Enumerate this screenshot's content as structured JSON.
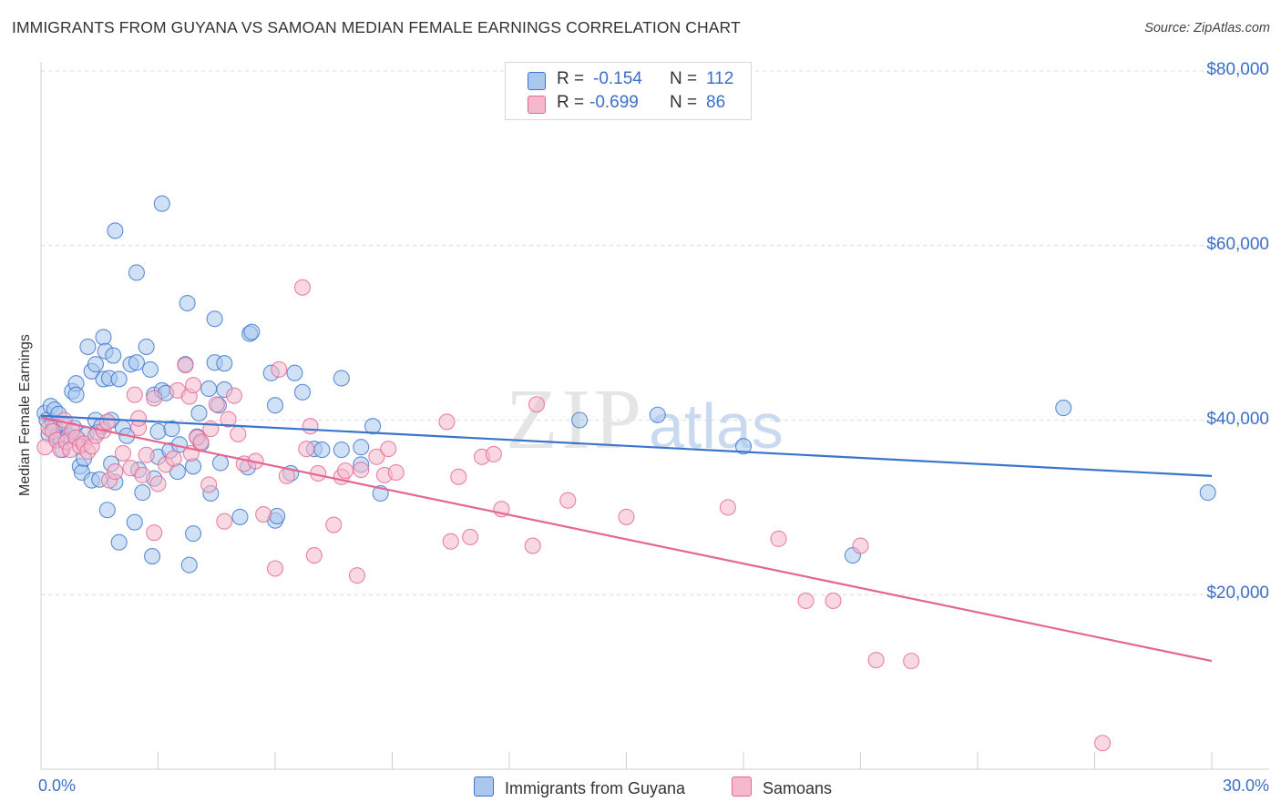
{
  "title": "IMMIGRANTS FROM GUYANA VS SAMOAN MEDIAN FEMALE EARNINGS CORRELATION CHART",
  "source": "Source: ZipAtlas.com",
  "watermark": {
    "zip": "ZIP",
    "atlas": "atlas"
  },
  "legend": {
    "rows": [
      {
        "r_label": "R =",
        "r_value": "-0.154",
        "n_label": "N =",
        "n_value": "112"
      },
      {
        "r_label": "R =",
        "r_value": "-0.699",
        "n_label": "N =",
        "n_value": "86"
      }
    ]
  },
  "colors": {
    "blue": "#3a74cc",
    "blue_fill": "#aac8ee",
    "pink": "#e4678f",
    "pink_fill": "#f6b8cc",
    "tick_text": "#3a6fc9",
    "grid": "#dcdcdc"
  },
  "chart_data": {
    "type": "scatter",
    "title": "IMMIGRANTS FROM GUYANA VS SAMOAN MEDIAN FEMALE EARNINGS CORRELATION CHART",
    "xlabel": "",
    "ylabel": "Median Female Earnings",
    "xlim": [
      0,
      30
    ],
    "ylim": [
      0,
      80000
    ],
    "x_tick_labels": [
      "0.0%",
      "30.0%"
    ],
    "y_ticks": [
      {
        "value": 20000,
        "label": "$20,000"
      },
      {
        "value": 40000,
        "label": "$40,000"
      },
      {
        "value": 60000,
        "label": "$60,000"
      },
      {
        "value": 80000,
        "label": "$80,000"
      }
    ],
    "series": [
      {
        "name": "Immigrants from Guyana",
        "color": "blue",
        "r": -0.154,
        "n": 112,
        "trend": {
          "x": [
            0,
            30
          ],
          "y": [
            40500,
            33600
          ]
        },
        "points": [
          [
            0.1,
            40800
          ],
          [
            0.15,
            40000
          ],
          [
            0.2,
            38400
          ],
          [
            0.25,
            41600
          ],
          [
            0.3,
            39800
          ],
          [
            0.35,
            41200
          ],
          [
            0.35,
            39200
          ],
          [
            0.4,
            38100
          ],
          [
            0.45,
            40700
          ],
          [
            0.5,
            37900
          ],
          [
            0.55,
            36600
          ],
          [
            0.6,
            39400
          ],
          [
            0.7,
            38200
          ],
          [
            0.8,
            43300
          ],
          [
            0.85,
            39100
          ],
          [
            0.9,
            44200
          ],
          [
            0.9,
            42900
          ],
          [
            0.95,
            37800
          ],
          [
            1.0,
            34700
          ],
          [
            1.05,
            34000
          ],
          [
            1.1,
            35600
          ],
          [
            1.15,
            38300
          ],
          [
            1.2,
            48400
          ],
          [
            1.3,
            45600
          ],
          [
            1.3,
            33100
          ],
          [
            1.4,
            46400
          ],
          [
            1.4,
            40000
          ],
          [
            1.45,
            38600
          ],
          [
            1.5,
            33200
          ],
          [
            1.55,
            39300
          ],
          [
            1.6,
            49500
          ],
          [
            1.6,
            44700
          ],
          [
            1.65,
            47900
          ],
          [
            1.7,
            29700
          ],
          [
            1.75,
            44800
          ],
          [
            1.8,
            40000
          ],
          [
            1.8,
            35000
          ],
          [
            1.85,
            47400
          ],
          [
            1.9,
            61700
          ],
          [
            1.9,
            32900
          ],
          [
            2.0,
            44700
          ],
          [
            2.0,
            26000
          ],
          [
            2.1,
            39100
          ],
          [
            2.2,
            38200
          ],
          [
            2.3,
            46400
          ],
          [
            2.4,
            28300
          ],
          [
            2.45,
            56900
          ],
          [
            2.45,
            46600
          ],
          [
            2.5,
            34300
          ],
          [
            2.6,
            31700
          ],
          [
            2.7,
            48400
          ],
          [
            2.8,
            45800
          ],
          [
            2.85,
            24400
          ],
          [
            2.9,
            42900
          ],
          [
            2.9,
            33300
          ],
          [
            3.0,
            35800
          ],
          [
            3.0,
            38700
          ],
          [
            3.1,
            64800
          ],
          [
            3.1,
            43400
          ],
          [
            3.2,
            43100
          ],
          [
            3.3,
            36500
          ],
          [
            3.35,
            39000
          ],
          [
            3.5,
            34100
          ],
          [
            3.55,
            37200
          ],
          [
            3.7,
            46400
          ],
          [
            3.75,
            53400
          ],
          [
            3.8,
            23400
          ],
          [
            3.9,
            27000
          ],
          [
            3.9,
            34700
          ],
          [
            4.0,
            38100
          ],
          [
            4.05,
            40800
          ],
          [
            4.1,
            37300
          ],
          [
            4.3,
            43600
          ],
          [
            4.35,
            31600
          ],
          [
            4.45,
            51600
          ],
          [
            4.45,
            46600
          ],
          [
            4.55,
            41700
          ],
          [
            4.6,
            35100
          ],
          [
            4.7,
            43500
          ],
          [
            4.7,
            46500
          ],
          [
            5.1,
            28900
          ],
          [
            5.3,
            34600
          ],
          [
            5.35,
            49900
          ],
          [
            5.4,
            50100
          ],
          [
            5.9,
            45400
          ],
          [
            6.0,
            28500
          ],
          [
            6.0,
            41700
          ],
          [
            6.05,
            29000
          ],
          [
            6.4,
            33900
          ],
          [
            6.5,
            45400
          ],
          [
            6.7,
            43200
          ],
          [
            7.0,
            36700
          ],
          [
            7.2,
            36600
          ],
          [
            7.7,
            36600
          ],
          [
            7.7,
            44800
          ],
          [
            8.2,
            34900
          ],
          [
            8.2,
            36900
          ],
          [
            8.5,
            39300
          ],
          [
            8.7,
            31600
          ],
          [
            13.8,
            40000
          ],
          [
            15.8,
            40600
          ],
          [
            18.0,
            37000
          ],
          [
            20.8,
            24500
          ],
          [
            26.2,
            41400
          ],
          [
            29.9,
            31700
          ]
        ]
      },
      {
        "name": "Samoans",
        "color": "pink",
        "r": -0.699,
        "n": 86,
        "trend": {
          "x": [
            0,
            30
          ],
          "y": [
            40300,
            12400
          ]
        },
        "points": [
          [
            0.1,
            36900
          ],
          [
            0.2,
            39100
          ],
          [
            0.3,
            38700
          ],
          [
            0.4,
            37700
          ],
          [
            0.5,
            36600
          ],
          [
            0.6,
            40000
          ],
          [
            0.65,
            37500
          ],
          [
            0.75,
            36600
          ],
          [
            0.8,
            38800
          ],
          [
            0.9,
            38000
          ],
          [
            1.0,
            37000
          ],
          [
            1.1,
            37300
          ],
          [
            1.2,
            36400
          ],
          [
            1.3,
            37000
          ],
          [
            1.4,
            38200
          ],
          [
            1.6,
            38800
          ],
          [
            1.7,
            39800
          ],
          [
            1.75,
            33100
          ],
          [
            1.9,
            34100
          ],
          [
            2.1,
            36200
          ],
          [
            2.3,
            34500
          ],
          [
            2.4,
            42900
          ],
          [
            2.5,
            39100
          ],
          [
            2.5,
            40200
          ],
          [
            2.6,
            33700
          ],
          [
            2.7,
            36000
          ],
          [
            2.9,
            27100
          ],
          [
            2.9,
            42500
          ],
          [
            3.0,
            32700
          ],
          [
            3.2,
            34900
          ],
          [
            3.4,
            35600
          ],
          [
            3.5,
            43400
          ],
          [
            3.7,
            46300
          ],
          [
            3.8,
            42700
          ],
          [
            3.85,
            36200
          ],
          [
            3.9,
            44000
          ],
          [
            4.0,
            38000
          ],
          [
            4.1,
            37500
          ],
          [
            4.3,
            32600
          ],
          [
            4.35,
            39000
          ],
          [
            4.5,
            41800
          ],
          [
            4.7,
            28400
          ],
          [
            4.8,
            40100
          ],
          [
            4.95,
            42800
          ],
          [
            5.05,
            38400
          ],
          [
            5.2,
            35000
          ],
          [
            5.5,
            35300
          ],
          [
            5.7,
            29200
          ],
          [
            6.0,
            23000
          ],
          [
            6.1,
            45800
          ],
          [
            6.3,
            33600
          ],
          [
            6.7,
            55200
          ],
          [
            6.8,
            36700
          ],
          [
            6.9,
            39300
          ],
          [
            7.0,
            24500
          ],
          [
            7.1,
            33900
          ],
          [
            7.5,
            28000
          ],
          [
            7.7,
            33500
          ],
          [
            7.8,
            34200
          ],
          [
            8.1,
            22200
          ],
          [
            8.2,
            34300
          ],
          [
            8.6,
            35800
          ],
          [
            8.8,
            33700
          ],
          [
            8.9,
            36700
          ],
          [
            9.1,
            34000
          ],
          [
            10.4,
            39800
          ],
          [
            10.5,
            26100
          ],
          [
            10.7,
            33500
          ],
          [
            11.0,
            26600
          ],
          [
            11.3,
            35800
          ],
          [
            11.6,
            36100
          ],
          [
            11.8,
            29800
          ],
          [
            12.6,
            25600
          ],
          [
            12.7,
            41800
          ],
          [
            13.5,
            30800
          ],
          [
            15.0,
            28900
          ],
          [
            17.6,
            30000
          ],
          [
            18.9,
            26400
          ],
          [
            19.6,
            19300
          ],
          [
            20.3,
            19300
          ],
          [
            21.0,
            25600
          ],
          [
            21.4,
            12500
          ],
          [
            22.3,
            12400
          ],
          [
            27.2,
            3000
          ]
        ]
      }
    ]
  },
  "bottom_legend": [
    "Immigrants from Guyana",
    "Samoans"
  ]
}
